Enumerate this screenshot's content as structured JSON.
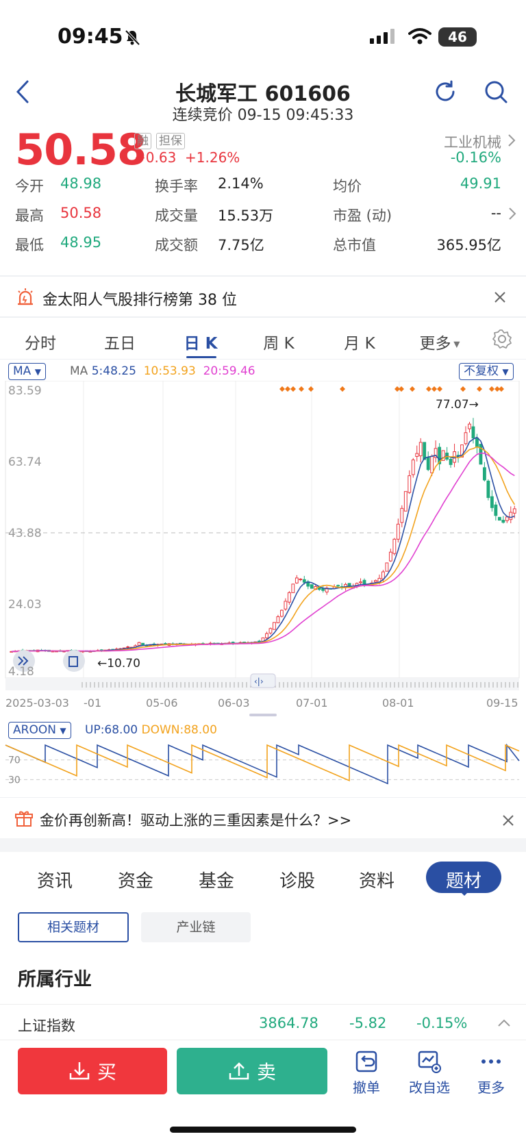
{
  "status": {
    "time": "09:45",
    "battery": "46"
  },
  "header": {
    "title": "长城军工 601606",
    "subtitle": "连续竞价 09-15 09:45:33"
  },
  "quote": {
    "price": "50.58",
    "tag_rong": "融",
    "tag_danbao": "担保",
    "change": "+0.63",
    "change_pct": "+1.26%",
    "industry": "工业机械",
    "industry_change": "-0.16%"
  },
  "stats": [
    {
      "label": "今开",
      "value": "48.98",
      "color": "#20a97d"
    },
    {
      "label": "换手率",
      "value": "2.14%",
      "color": "#222222"
    },
    {
      "label": "均价",
      "value": "49.91",
      "color": "#20a97d"
    },
    {
      "label": "最高",
      "value": "50.58",
      "color": "#e8343d"
    },
    {
      "label": "成交量",
      "value": "15.53万",
      "color": "#222222"
    },
    {
      "label": "市盈 (动)",
      "value": "--",
      "color": "#222222"
    },
    {
      "label": "最低",
      "value": "48.95",
      "color": "#20a97d"
    },
    {
      "label": "成交额",
      "value": "7.75亿",
      "color": "#222222"
    },
    {
      "label": "总市值",
      "value": "365.95亿",
      "color": "#222222"
    }
  ],
  "banner1": {
    "text": "金太阳人气股排行榜第 38 位"
  },
  "chart_tabs": [
    "分时",
    "五日",
    "日 K",
    "周 K",
    "月 K",
    "更多"
  ],
  "chart_tabs_active": 2,
  "ma_legend": {
    "select": "MA",
    "prefix": "MA",
    "ma5": "5:48.25",
    "ma10": "10:53.93",
    "ma20": "20:59.46",
    "fuquan": "不复权"
  },
  "chart_data": [
    {
      "type": "candlestick",
      "y_ticks": [
        "83.59",
        "63.74",
        "43.88",
        "24.03",
        "4.18"
      ],
      "ylim": [
        4.18,
        83.59
      ],
      "x_ticks": [
        "2025-03-03",
        "-01",
        "05-06",
        "06-03",
        "07-01",
        "08-01",
        "09-15"
      ],
      "annotations": {
        "high": "77.07",
        "low": "10.70"
      },
      "closes": [
        10.8,
        10.9,
        11.0,
        10.9,
        11.1,
        11.0,
        10.9,
        11.2,
        11.1,
        11.0,
        10.8,
        10.9,
        10.9,
        11.0,
        10.9,
        11.1,
        11.0,
        10.8,
        10.7,
        10.9,
        10.8,
        10.9,
        11.0,
        11.1,
        11.0,
        11.2,
        11.3,
        11.4,
        11.5,
        11.6,
        11.8,
        12.1,
        12.0,
        12.4,
        13.3,
        12.6,
        12.5,
        12.7,
        12.6,
        12.8,
        12.9,
        12.7,
        13.0,
        12.8,
        12.9,
        13.0,
        12.8,
        12.6,
        12.8,
        12.9,
        13.0,
        12.7,
        12.9,
        13.1,
        13.0,
        12.9,
        13.0,
        13.1,
        13.2,
        13.0,
        13.1,
        13.3,
        13.4,
        13.2,
        13.3,
        13.5,
        13.4,
        14.6,
        15.8,
        17.2,
        18.9,
        20.5,
        22.3,
        24.8,
        27.2,
        29.6,
        31.3,
        31.0,
        30.1,
        29.0,
        28.4,
        28.9,
        28.1,
        27.8,
        28.5,
        28.2,
        28.8,
        29.2,
        28.6,
        29.5,
        28.9,
        29.0,
        29.8,
        30.2,
        29.6,
        29.4,
        29.9,
        30.6,
        31.2,
        33.0,
        35.5,
        38.5,
        42.1,
        46.3,
        50.7,
        55.4,
        59.8,
        64.2,
        66.0,
        69.1,
        64.3,
        61.5,
        65.2,
        67.4,
        63.1,
        66.8,
        64.4,
        62.9,
        66.5,
        65.3,
        68.4,
        71.8,
        74.2,
        70.3,
        67.9,
        63.0,
        58.6,
        53.7,
        50.9,
        48.7,
        47.4,
        46.8,
        48.3,
        49.6,
        50.58
      ],
      "ma5_last": 48.25,
      "ma10_last": 53.93,
      "ma20_last": 59.46
    },
    {
      "type": "line",
      "title": "AROON",
      "series": [
        {
          "name": "UP",
          "last": 68.0,
          "color": "#2a4fa3"
        },
        {
          "name": "DOWN",
          "last": 88.0,
          "color": "#f2a21c"
        }
      ],
      "y_ticks": [
        "70",
        "30"
      ],
      "ylim": [
        0,
        100
      ]
    }
  ],
  "aroon_legend": {
    "select": "AROON",
    "up": "UP:68.00",
    "down": "DOWN:88.00"
  },
  "banner2": {
    "text": "金价再创新高！驱动上涨的三重因素是什么？>>"
  },
  "bottom_tabs": [
    "资讯",
    "资金",
    "基金",
    "诊股",
    "资料",
    "题材"
  ],
  "bottom_tabs_active": 5,
  "pills": {
    "related": "相关题材",
    "chain": "产业链"
  },
  "section": {
    "title": "所属行业"
  },
  "index_row": {
    "name": "上证指数",
    "value": "3864.78",
    "change": "-5.82",
    "pct": "-0.15%"
  },
  "actions": {
    "buy": "买",
    "sell": "卖",
    "cancel": "撤单",
    "watchlist": "改自选",
    "more": "更多"
  }
}
